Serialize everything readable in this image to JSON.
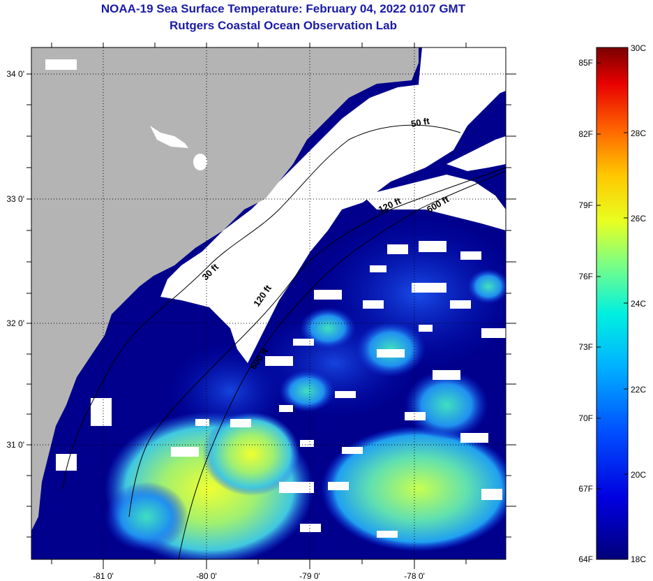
{
  "title": {
    "line1": "NOAA-19 Sea Surface Temperature:  February 04, 2022 0107 GMT",
    "line2": "Rutgers Coastal Ocean Observation Lab"
  },
  "map": {
    "lat_labels": [
      "34 0'",
      "33 0'",
      "32 0'",
      "31 0'"
    ],
    "lon_labels": [
      "-81 0'",
      "-80 0'",
      "-79 0'",
      "-78 0'"
    ],
    "contour_labels": [
      "50 ft",
      "120 ft",
      "600 ft",
      "30 ft",
      "120 ft",
      "600 ft"
    ],
    "colors": {
      "land": "#b4b4b4",
      "cloud": "#ffffff",
      "ocean_cold": "#00008c"
    }
  },
  "colorbar": {
    "fahrenheit_labels": [
      "85F",
      "82F",
      "79F",
      "76F",
      "73F",
      "70F",
      "67F",
      "64F"
    ],
    "celsius_labels": [
      "30C",
      "28C",
      "26C",
      "24C",
      "22C",
      "20C",
      "18C"
    ],
    "min_c": 18,
    "max_c": 30
  }
}
